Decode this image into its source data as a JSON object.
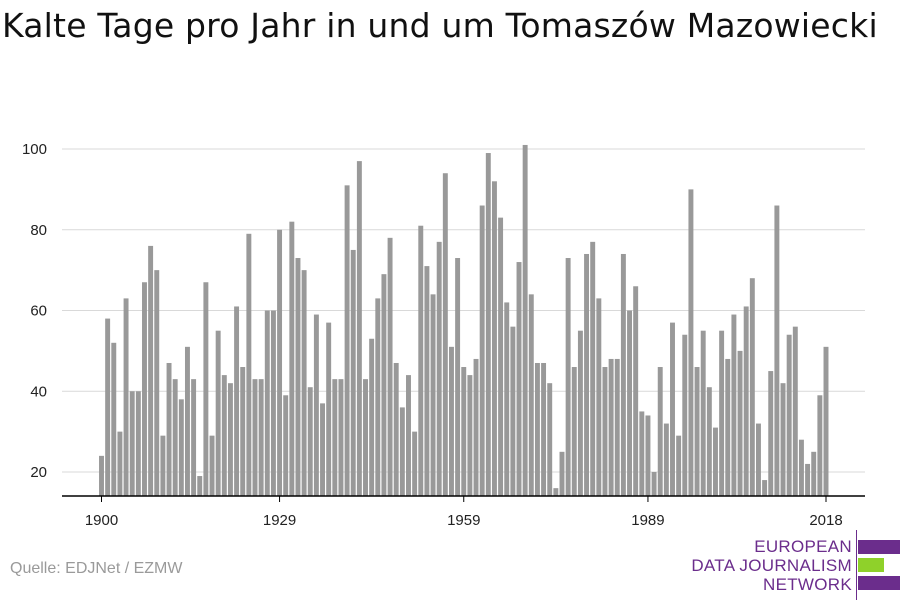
{
  "title": "Kalte Tage pro Jahr in und um Tomaszów Mazowiecki",
  "source": "Quelle: EDJNet / EZMW",
  "logo": {
    "line1": "EUROPEAN",
    "line2": "DATA JOURNALISM",
    "line3": "NETWORK"
  },
  "colors": {
    "bar": "#999999",
    "grid": "#d9d9d9",
    "axis": "#000000",
    "logo_purple": "#6b2d8c",
    "logo_green": "#8fd12a"
  },
  "chart_data": {
    "type": "bar",
    "title": "Kalte Tage pro Jahr in und um Tomaszów Mazowiecki",
    "xlabel": "",
    "ylabel": "",
    "x": [
      1900,
      1901,
      1902,
      1903,
      1904,
      1905,
      1906,
      1907,
      1908,
      1909,
      1910,
      1911,
      1912,
      1913,
      1914,
      1915,
      1916,
      1917,
      1918,
      1919,
      1920,
      1921,
      1922,
      1923,
      1924,
      1925,
      1926,
      1927,
      1928,
      1929,
      1930,
      1931,
      1932,
      1933,
      1934,
      1935,
      1936,
      1937,
      1938,
      1939,
      1940,
      1941,
      1942,
      1943,
      1944,
      1945,
      1946,
      1947,
      1948,
      1949,
      1950,
      1951,
      1952,
      1953,
      1954,
      1955,
      1956,
      1957,
      1958,
      1959,
      1960,
      1961,
      1962,
      1963,
      1964,
      1965,
      1966,
      1967,
      1968,
      1969,
      1970,
      1971,
      1972,
      1973,
      1974,
      1975,
      1976,
      1977,
      1978,
      1979,
      1980,
      1981,
      1982,
      1983,
      1984,
      1985,
      1986,
      1987,
      1988,
      1989,
      1990,
      1991,
      1992,
      1993,
      1994,
      1995,
      1996,
      1997,
      1998,
      1999,
      2000,
      2001,
      2002,
      2003,
      2004,
      2005,
      2006,
      2007,
      2008,
      2009,
      2010,
      2011,
      2012,
      2013,
      2014,
      2015,
      2016,
      2017,
      2018
    ],
    "values": [
      24,
      58,
      52,
      30,
      63,
      40,
      40,
      67,
      76,
      70,
      29,
      47,
      43,
      38,
      51,
      43,
      19,
      67,
      29,
      55,
      44,
      42,
      61,
      46,
      79,
      43,
      43,
      60,
      60,
      80,
      39,
      82,
      73,
      70,
      41,
      59,
      37,
      57,
      43,
      43,
      91,
      75,
      97,
      43,
      53,
      63,
      69,
      78,
      47,
      36,
      44,
      30,
      81,
      71,
      64,
      77,
      94,
      51,
      73,
      46,
      44,
      48,
      86,
      99,
      92,
      83,
      62,
      56,
      72,
      101,
      64,
      47,
      47,
      42,
      16,
      25,
      73,
      46,
      55,
      74,
      77,
      63,
      46,
      48,
      48,
      74,
      60,
      66,
      35,
      34,
      20,
      46,
      32,
      57,
      29,
      54,
      90,
      46,
      55,
      41,
      31,
      55,
      48,
      59,
      50,
      61,
      68,
      32,
      18,
      45,
      86,
      42,
      54,
      56,
      28,
      22,
      25,
      39,
      51
    ],
    "xticks": [
      1900,
      1929,
      1959,
      1989,
      2018
    ],
    "yticks": [
      20,
      40,
      60,
      80,
      100
    ],
    "ylim": [
      14,
      102
    ],
    "grid": true,
    "legend": "none"
  }
}
